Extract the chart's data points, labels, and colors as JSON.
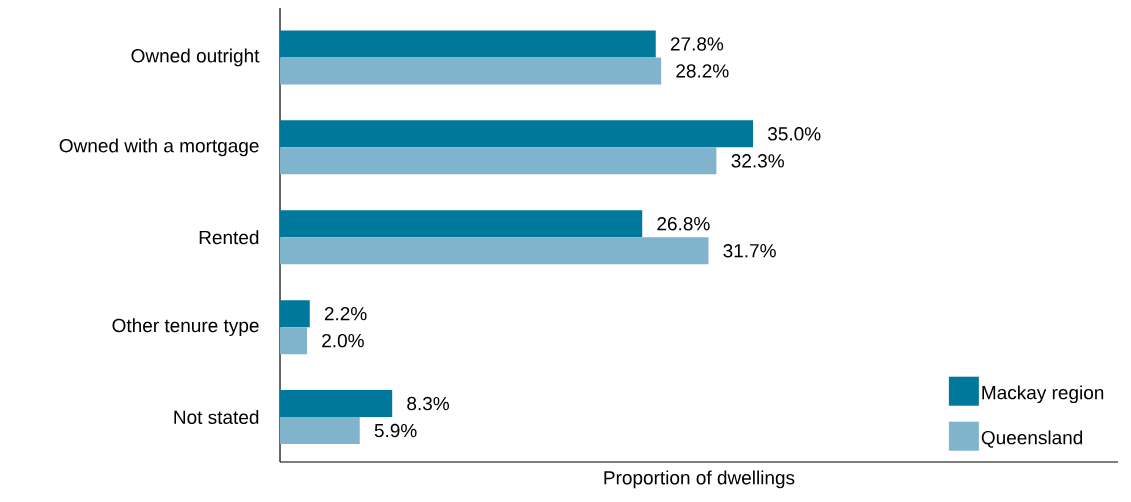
{
  "chart_data": {
    "type": "bar",
    "orientation": "horizontal",
    "xlabel": "Proportion of dwellings",
    "categories": [
      "Owned outright",
      "Owned with a mortgage",
      "Rented",
      "Other tenure type",
      "Not stated"
    ],
    "series": [
      {
        "name": "Mackay region",
        "color": "#00789c",
        "values": [
          27.8,
          35.0,
          26.8,
          2.2,
          8.3
        ],
        "value_labels": [
          "27.8%",
          "35.0%",
          "26.8%",
          "2.2%",
          "8.3%"
        ]
      },
      {
        "name": "Queensland",
        "color": "#80b3cc",
        "values": [
          28.2,
          32.3,
          31.7,
          2.0,
          5.9
        ],
        "value_labels": [
          "28.2%",
          "32.3%",
          "31.7%",
          "2.0%",
          "5.9%"
        ]
      }
    ],
    "xlim": [
      0,
      62
    ],
    "legend": "bottom right"
  }
}
